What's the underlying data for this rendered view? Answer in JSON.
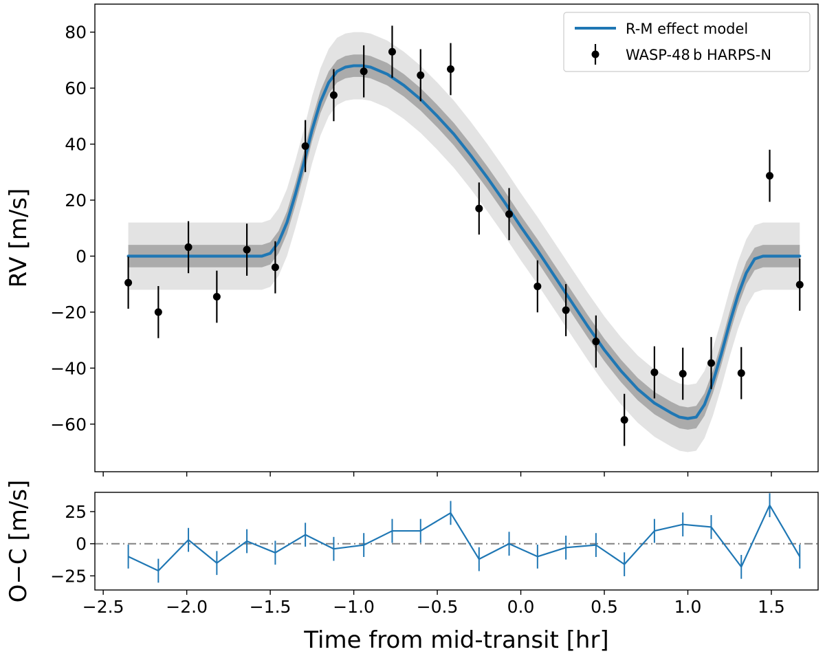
{
  "chart_data": [
    {
      "panel": "top",
      "type": "line+errorbar",
      "xlabel": "",
      "ylabel": "RV [m/s]",
      "xlim": [
        -2.55,
        1.78
      ],
      "ylim": [
        -77,
        90
      ],
      "xticks": [
        -2.5,
        -2.0,
        -1.5,
        -1.0,
        -0.5,
        0.0,
        0.5,
        1.0,
        1.5
      ],
      "yticks": [
        -60,
        -40,
        -20,
        0,
        20,
        40,
        60,
        80
      ],
      "ytick_labels": [
        "−60",
        "−40",
        "−20",
        "0",
        "20",
        "40",
        "60",
        "80"
      ],
      "legend": {
        "placement": "top-right",
        "entries": [
          "R-M effect model",
          "WASP-48 b HARPS-N"
        ]
      },
      "model": {
        "name": "R-M effect model",
        "color": "#1f77b4",
        "x": [
          -2.35,
          -1.55,
          -1.5,
          -1.45,
          -1.4,
          -1.35,
          -1.3,
          -1.25,
          -1.2,
          -1.15,
          -1.1,
          -1.05,
          -1.0,
          -0.95,
          -0.9,
          -0.8,
          -0.7,
          -0.6,
          -0.5,
          -0.4,
          -0.3,
          -0.2,
          -0.1,
          0.0,
          0.1,
          0.2,
          0.3,
          0.4,
          0.5,
          0.6,
          0.7,
          0.8,
          0.9,
          0.95,
          1.0,
          1.05,
          1.1,
          1.15,
          1.2,
          1.25,
          1.3,
          1.35,
          1.4,
          1.45,
          1.5,
          1.55,
          1.67
        ],
        "y": [
          0,
          0,
          1,
          5,
          12,
          22,
          33,
          45,
          55,
          62,
          66,
          67.5,
          68,
          68,
          67.5,
          65,
          61,
          56,
          50,
          43.5,
          36,
          28,
          19.5,
          10.5,
          2,
          -7,
          -16,
          -25,
          -33.5,
          -41,
          -47.5,
          -52.5,
          -56,
          -57.5,
          -58,
          -57.5,
          -53,
          -45,
          -35,
          -24,
          -14,
          -6,
          -1,
          0,
          0,
          0,
          0
        ],
        "band_inner_halfwidth": 4,
        "band_outer_halfwidth": 12,
        "band_inner_color": "#ababab",
        "band_outer_color": "#e3e3e3"
      },
      "observations": {
        "name": "WASP-48 b HARPS-N",
        "color": "#000000",
        "x": [
          -2.35,
          -2.17,
          -1.99,
          -1.82,
          -1.64,
          -1.47,
          -1.29,
          -1.12,
          -0.94,
          -0.77,
          -0.6,
          -0.42,
          -0.25,
          -0.07,
          0.1,
          0.27,
          0.45,
          0.62,
          0.8,
          0.97,
          1.14,
          1.32,
          1.49,
          1.67
        ],
        "y": [
          -9.5,
          -20,
          3.2,
          -14.5,
          2.3,
          -4,
          39.3,
          57.5,
          66,
          73,
          64.6,
          66.8,
          17,
          15,
          -10.8,
          -19.3,
          -30.5,
          -58.5,
          -41.5,
          -42,
          -38.2,
          -41.8,
          28.7,
          -10.2
        ],
        "yerr": 9.3
      }
    },
    {
      "panel": "bottom",
      "type": "line+errorbar",
      "xlabel": "Time from mid-transit [hr]",
      "ylabel": "O−C [m/s]",
      "xlim": [
        -2.55,
        1.78
      ],
      "ylim": [
        -36,
        40
      ],
      "xticks": [
        -2.5,
        -2.0,
        -1.5,
        -1.0,
        -0.5,
        0.0,
        0.5,
        1.0,
        1.5
      ],
      "xtick_labels": [
        "−2.5",
        "−2.0",
        "−1.5",
        "−1.0",
        "−0.5",
        "0.0",
        "0.5",
        "1.0",
        "1.5"
      ],
      "yticks": [
        -25,
        0,
        25
      ],
      "ytick_labels": [
        "−25",
        "0",
        "25"
      ],
      "zero_line": {
        "y": 0,
        "style": "dash-dot",
        "color": "#808080"
      },
      "residuals": {
        "color": "#1f77b4",
        "x": [
          -2.35,
          -2.17,
          -1.99,
          -1.82,
          -1.64,
          -1.47,
          -1.29,
          -1.12,
          -0.94,
          -0.77,
          -0.6,
          -0.42,
          -0.25,
          -0.07,
          0.1,
          0.27,
          0.45,
          0.62,
          0.8,
          0.97,
          1.14,
          1.32,
          1.49,
          1.67
        ],
        "y": [
          -10,
          -21,
          3,
          -15,
          2,
          -7,
          7,
          -4,
          -1,
          10,
          10,
          24,
          -12,
          0,
          -10,
          -3,
          -1,
          -16,
          10,
          15,
          13,
          -18,
          30,
          -10
        ],
        "yerr": 9.3
      }
    }
  ]
}
